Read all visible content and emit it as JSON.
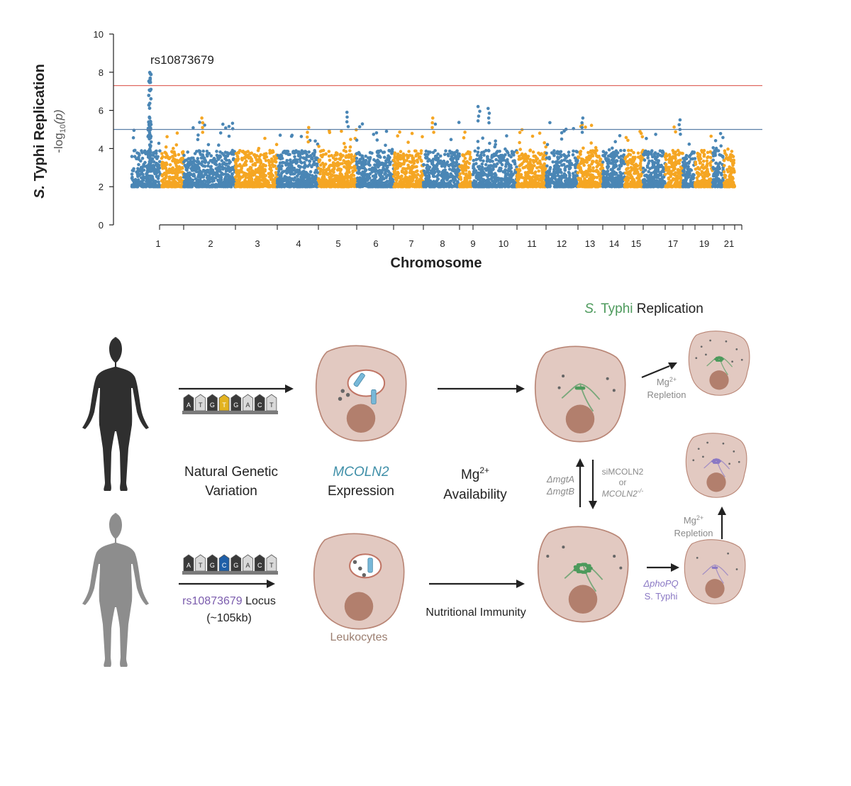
{
  "colors": {
    "blue": "#4a86b5",
    "orange": "#f5a623",
    "red_line": "#e06b63",
    "blue_line": "#5b7fa8",
    "cell_fill": "#e2c9c1",
    "cell_stroke": "#b98676",
    "nucleus": "#b27f6d",
    "bacteria_green": "#4d9a5c",
    "bacteria_purple": "#8a78c4",
    "channel_blue": "#78b8d8",
    "label_purple": "#7b5cad",
    "label_teal": "#3f8fa8",
    "gray_text": "#8a8a8a",
    "human_dark": "#2f2f2f",
    "human_gray": "#8d8d8d"
  },
  "chart_data": {
    "type": "scatter",
    "subtype": "manhattan",
    "ylabel_line1": "S. Typhi Replication",
    "ylabel_line2_prefix": "-log",
    "ylabel_line2_sub": "10",
    "ylabel_line2_suffix": "(p)",
    "xlabel": "Chromosome",
    "ylim": [
      0,
      10
    ],
    "yticks": [
      "0",
      "2",
      "4",
      "6",
      "8",
      "10"
    ],
    "chromosomes": [
      "1",
      "2",
      "3",
      "4",
      "5",
      "6",
      "7",
      "8",
      "9",
      "10",
      "11",
      "12",
      "13",
      "14",
      "15",
      "16",
      "17",
      "18",
      "19",
      "20",
      "21",
      "22"
    ],
    "xtick_labels": [
      "1",
      "2",
      "3",
      "4",
      "5",
      "6",
      "7",
      "8",
      "9",
      "10",
      "11",
      "12",
      "13",
      "14",
      "15",
      "17",
      "19",
      "21"
    ],
    "genome_wide_threshold": 7.3,
    "suggestive_threshold": 5,
    "peak_label": "rs10873679",
    "peak_value": 8.2,
    "series_colors": [
      "blue",
      "orange"
    ]
  },
  "diagram": {
    "title_species": "S.",
    "title_species2": " Typhi",
    "title_rest": " Replication",
    "step1": "Natural Genetic",
    "step1b": "Variation",
    "step2_gene": "MCOLN2",
    "step2b": "Expression",
    "step3": "Mg",
    "step3_sup": "2+",
    "step3b": "Availability",
    "locus_id": "rs10873679",
    "locus_rest": " Locus",
    "locus_size": "(~105kb)",
    "leukocytes": "Leukocytes",
    "nutritional_immunity": "Nutritional Immunity",
    "mgt_a": "ΔmgtA",
    "mgt_b": "ΔmgtB",
    "si_line1": "siMCOLN2",
    "si_line2": "or",
    "si_line3": "MCOLN2",
    "si_line3_sup": "-/-",
    "repletion1_a": "Mg",
    "repletion1_sup": "2+",
    "repletion1_b": "Repletion",
    "repletion2_a": "Mg",
    "repletion2_sup": "2+",
    "repletion2_b": "Repletion",
    "phopq_a": "ΔphoPQ",
    "phopq_b": "S. Typhi",
    "seq_top": [
      "A",
      "T",
      "G",
      "T",
      "G",
      "A",
      "C",
      "T"
    ],
    "seq_bottom": [
      "A",
      "T",
      "G",
      "C",
      "G",
      "A",
      "C",
      "T"
    ]
  }
}
